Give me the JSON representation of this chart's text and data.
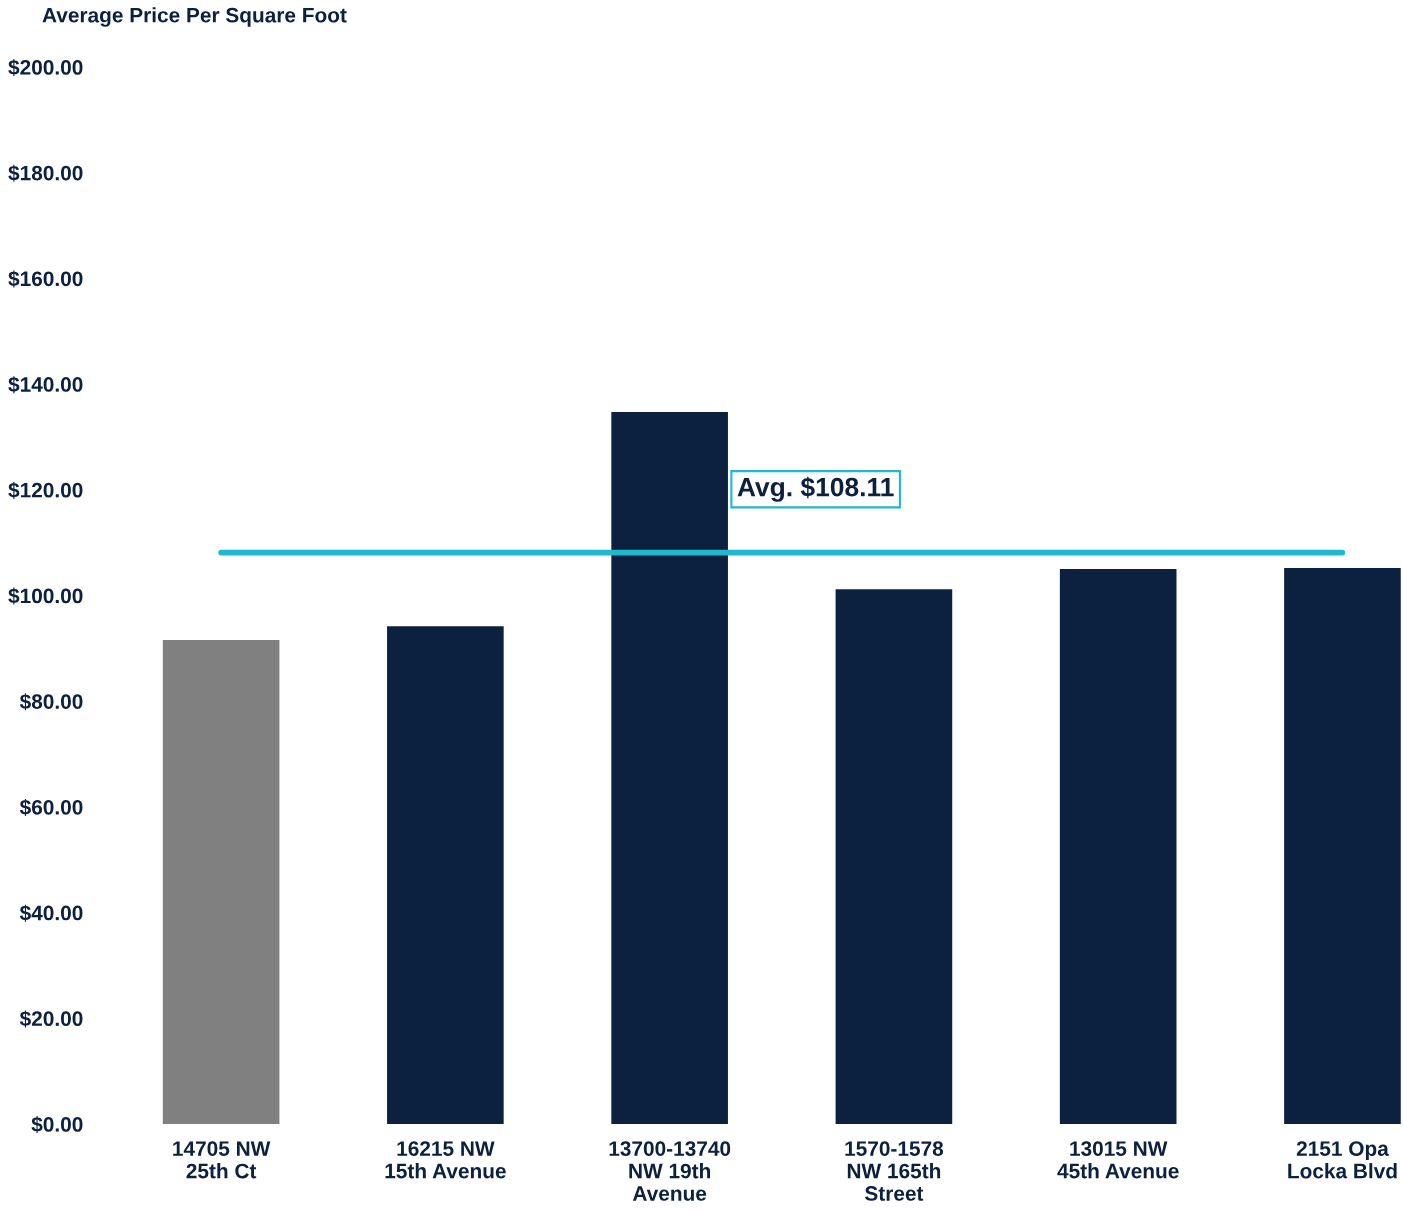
{
  "chart_data": {
    "type": "bar",
    "title": "Average Price Per Square Foot",
    "categories": [
      "14705 NW\n25th Ct",
      "16215 NW\n15th Avenue",
      "13700-13740\nNW 19th\nAvenue",
      "1570-1578\nNW 165th\nStreet",
      "13015 NW\n45th Avenue",
      "2151 Opa\nLocka Blvd"
    ],
    "values": [
      91.6,
      94.2,
      134.7,
      101.2,
      105.0,
      105.2
    ],
    "colors": [
      "#808080",
      "#0c2040",
      "#0c2040",
      "#0c2040",
      "#0c2040",
      "#0c2040"
    ],
    "ylim": [
      0,
      200
    ],
    "yticks": [
      {
        "value": 0,
        "label": "$0.00"
      },
      {
        "value": 20,
        "label": "$20.00"
      },
      {
        "value": 40,
        "label": "$40.00"
      },
      {
        "value": 60,
        "label": "$60.00"
      },
      {
        "value": 80,
        "label": "$80.00"
      },
      {
        "value": 100,
        "label": "$100.00"
      },
      {
        "value": 120,
        "label": "$120.00"
      },
      {
        "value": 140,
        "label": "$140.00"
      },
      {
        "value": 160,
        "label": "$160.00"
      },
      {
        "value": 180,
        "label": "$180.00"
      },
      {
        "value": 200,
        "label": "$200.00"
      }
    ],
    "ref_lines": [
      {
        "axis": "y",
        "value": 108.11,
        "label": "Avg. $108.11",
        "color": "#1fb8cd",
        "line_style": "solid"
      }
    ],
    "grid": false,
    "legend": false
  }
}
